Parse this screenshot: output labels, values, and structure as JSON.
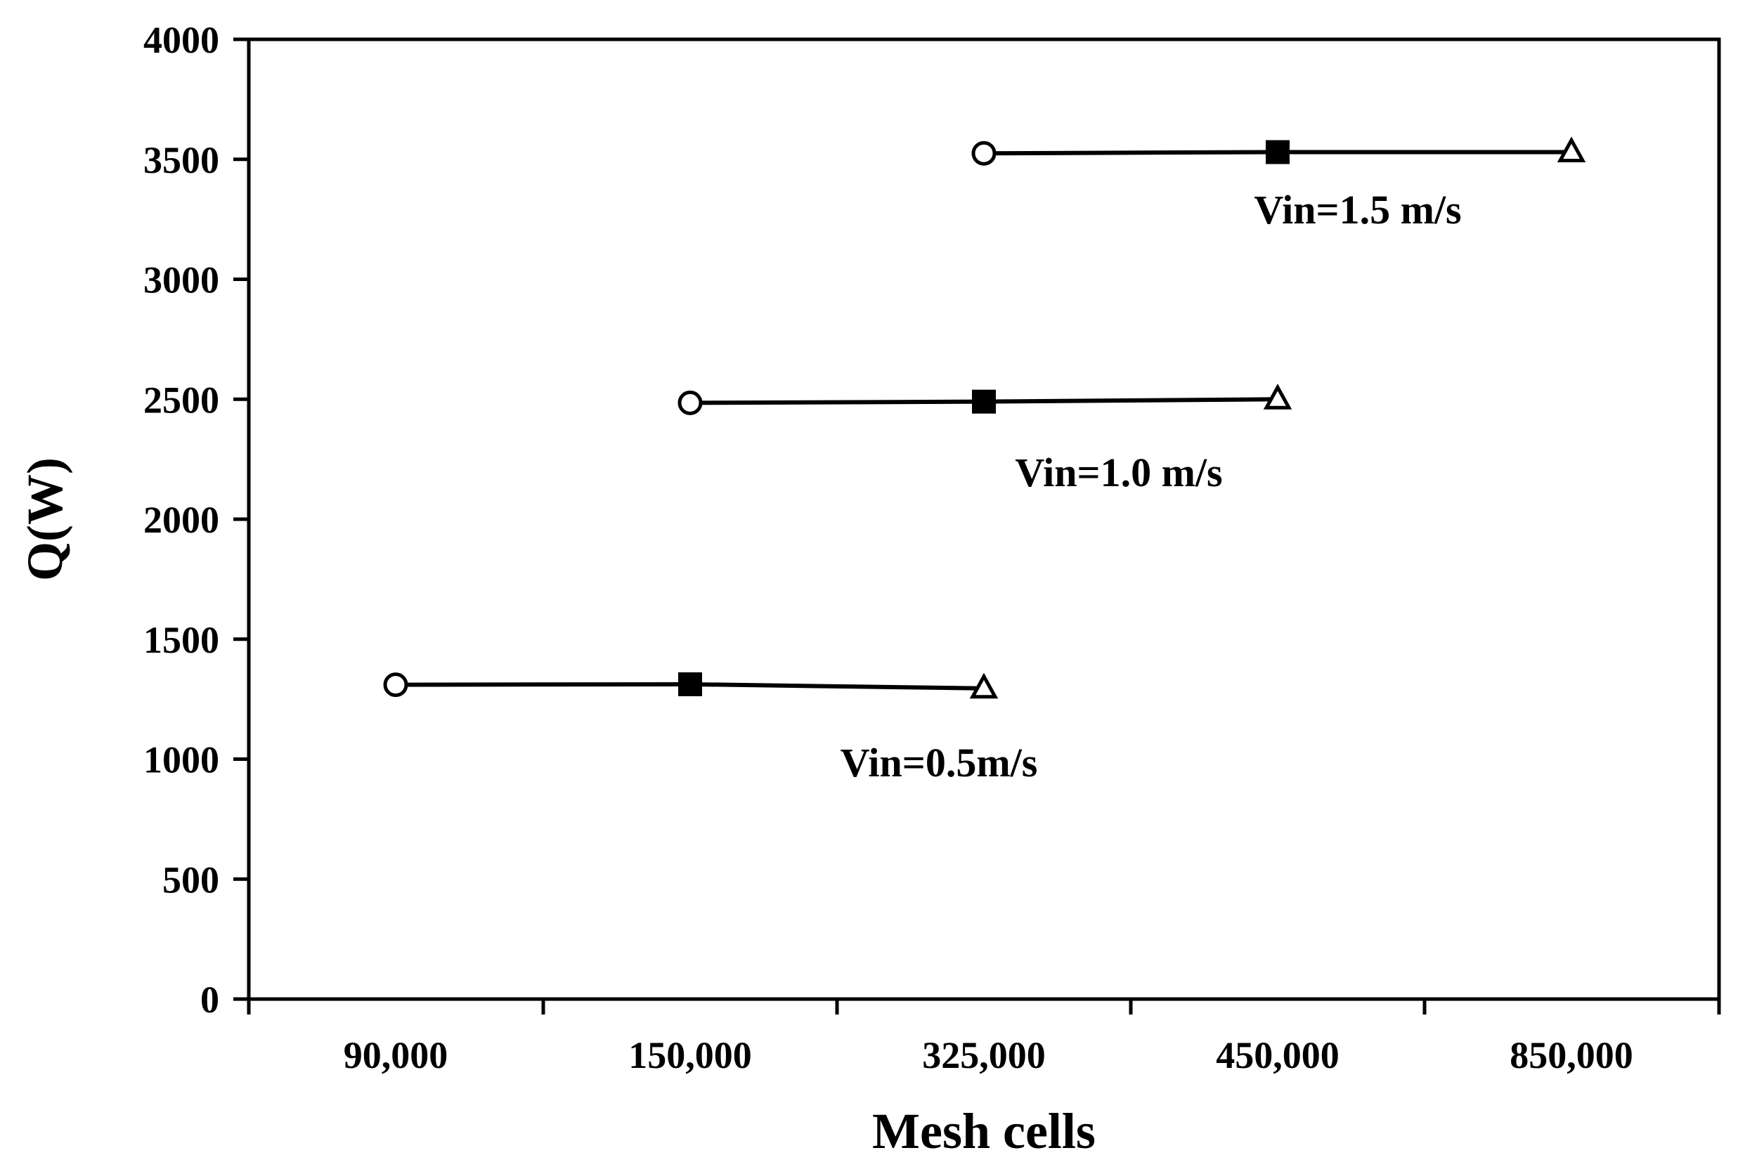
{
  "chart_data": {
    "type": "line",
    "title": "",
    "xlabel": "Mesh cells",
    "ylabel": "Q(W)",
    "categories": [
      "90,000",
      "150,000",
      "325,000",
      "450,000",
      "850,000"
    ],
    "ylim": [
      0,
      4000
    ],
    "yticks": [
      0,
      500,
      1000,
      1500,
      2000,
      2500,
      3000,
      3500,
      4000
    ],
    "grid": false,
    "legend": "none",
    "colors": {
      "line": "#000000",
      "background": "#ffffff"
    },
    "marker_shapes": [
      "open-circle",
      "filled-square",
      "open-triangle"
    ],
    "series": [
      {
        "name": "Vin=0.5m/s",
        "points": [
          {
            "category": "90,000",
            "value": 1310
          },
          {
            "category": "150,000",
            "value": 1312
          },
          {
            "category": "325,000",
            "value": 1295
          }
        ]
      },
      {
        "name": "Vin=1.0 m/s",
        "points": [
          {
            "category": "150,000",
            "value": 2485
          },
          {
            "category": "325,000",
            "value": 2490
          },
          {
            "category": "450,000",
            "value": 2500
          }
        ]
      },
      {
        "name": "Vin=1.5 m/s",
        "points": [
          {
            "category": "325,000",
            "value": 3525
          },
          {
            "category": "450,000",
            "value": 3530
          },
          {
            "category": "850,000",
            "value": 3530
          }
        ]
      }
    ]
  }
}
